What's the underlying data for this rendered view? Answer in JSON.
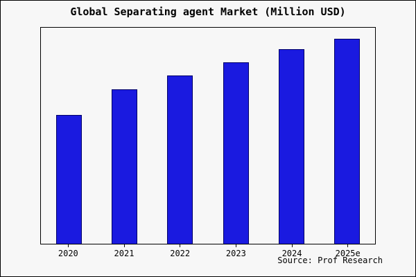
{
  "title": "Global Separating agent Market (Million USD)",
  "source": "Source: Prof Research",
  "colors": {
    "bar_fill": "#1a1ae0",
    "bar_border": "#000066",
    "background": "#f7f7f7",
    "frame_border": "#000000"
  },
  "chart_data": {
    "type": "bar",
    "title": "Global Separating agent Market (Million USD)",
    "categories": [
      "2020",
      "2021",
      "2022",
      "2023",
      "2024",
      "2025e"
    ],
    "values": [
      59.5,
      71.5,
      78,
      84,
      90,
      95
    ],
    "ylim": [
      0,
      100
    ],
    "xlabel": "",
    "ylabel": "",
    "grid": false,
    "legend_position": "none",
    "y_axis_tick_labels_visible": false,
    "values_note": "No y-axis scale shown in image; values are estimated bar heights as percent of plot height",
    "annotation": "Source: Prof Research"
  }
}
